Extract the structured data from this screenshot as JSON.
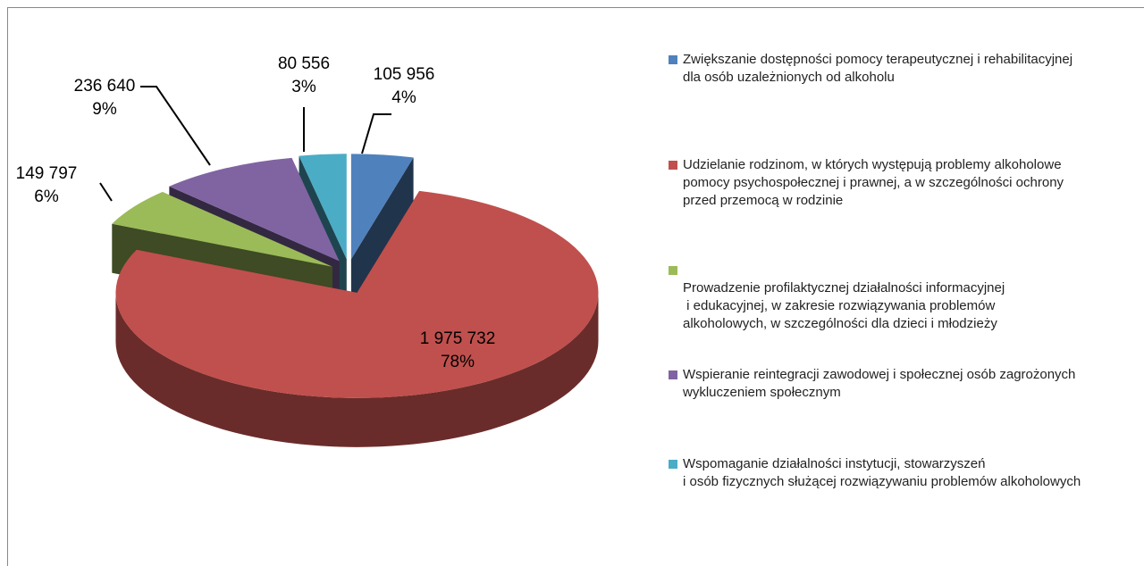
{
  "chart_data": {
    "type": "pie3d",
    "categories": [
      "Zwiększanie dostępności pomocy terapeutycznej i rehabilitacyjnej\ndla osób uzależnionych od alkoholu",
      "Udzielanie rodzinom, w których występują problemy alkoholowe\npomocy psychospołecznej i prawnej, a w szczególności ochrony\nprzed przemocą w rodzinie",
      "Prowadzenie profilaktycznej działalności informacyjnej\n i edukacyjnej, w zakresie rozwiązywania problemów\nalkoholowych, w szczególności dla dzieci i młodzieży",
      "Wspieranie reintegracji zawodowej i społecznej osób zagrożonych\nwykluczeniem społecznym",
      "Wspomaganie działalności instytucji, stowarzyszeń\ni osób fizycznych służącej rozwiązywaniu problemów alkoholowych"
    ],
    "values": [
      105956,
      1975732,
      149797,
      236640,
      80556
    ],
    "value_labels": [
      "105 956",
      "1 975 732",
      "149 797",
      "236 640",
      "80 556"
    ],
    "percent_labels": [
      "4%",
      "78%",
      "6%",
      "9%",
      "3%"
    ],
    "colors": [
      "#4f81bd",
      "#c0504d",
      "#9bbb59",
      "#8064a2",
      "#4bacc6"
    ],
    "legend": "right"
  }
}
